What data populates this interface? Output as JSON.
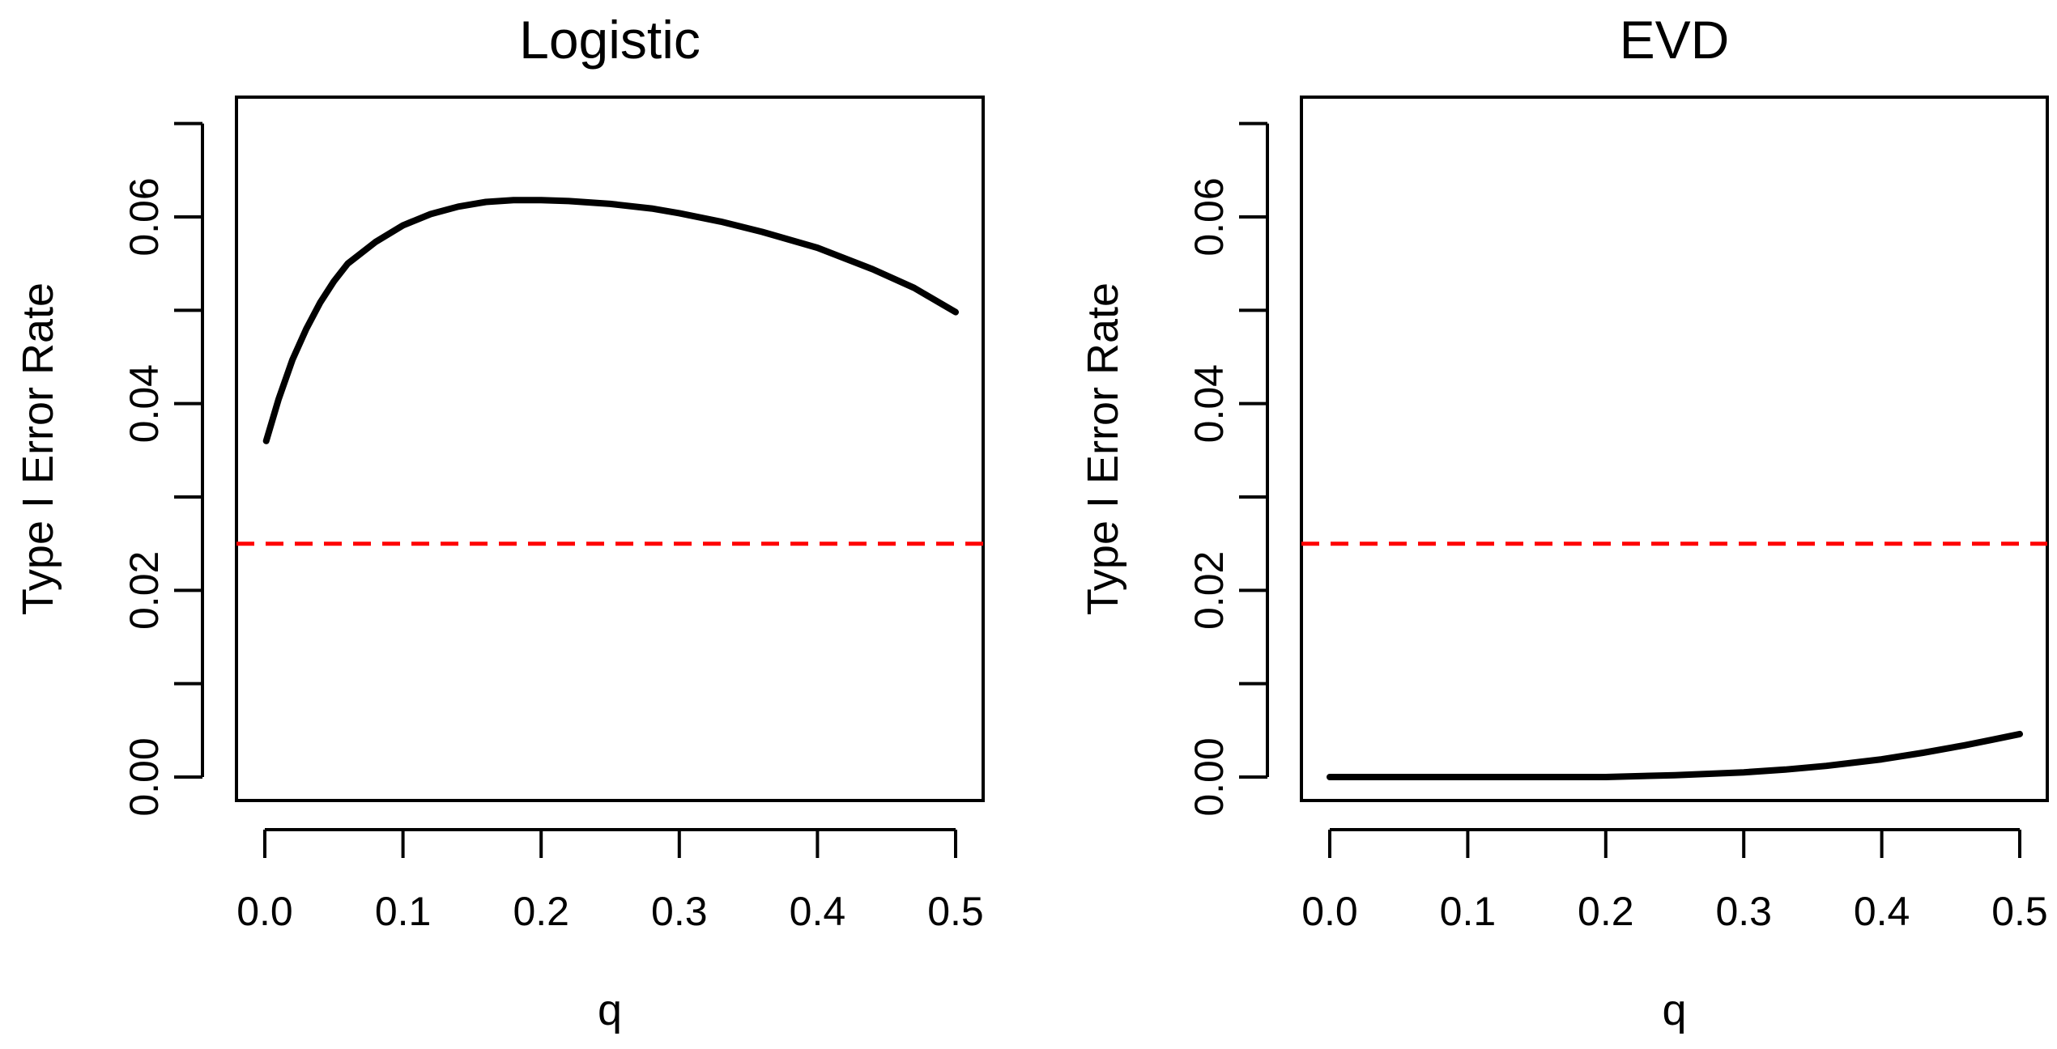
{
  "chart_data": [
    {
      "type": "line",
      "title": "Logistic",
      "xlabel": "q",
      "ylabel": "Type I Error Rate",
      "xlim": [
        0.0,
        0.5
      ],
      "ylim": [
        0.0,
        0.07
      ],
      "x_ticks": [
        "0.0",
        "0.1",
        "0.2",
        "0.3",
        "0.4",
        "0.5"
      ],
      "y_ticks": [
        "0.00",
        "0.02",
        "0.04",
        "0.06"
      ],
      "y_minor_ticks": [
        0.01,
        0.03,
        0.05,
        0.07
      ],
      "grid": false,
      "series": [
        {
          "color": "#000000",
          "style": "solid",
          "x": [
            0.001,
            0.01,
            0.02,
            0.03,
            0.04,
            0.05,
            0.06,
            0.08,
            0.1,
            0.12,
            0.14,
            0.16,
            0.18,
            0.2,
            0.22,
            0.25,
            0.28,
            0.3,
            0.33,
            0.36,
            0.4,
            0.44,
            0.47,
            0.5
          ],
          "y": [
            0.036,
            0.0405,
            0.0447,
            0.048,
            0.0508,
            0.0531,
            0.055,
            0.0573,
            0.0591,
            0.0603,
            0.0611,
            0.0616,
            0.0618,
            0.0618,
            0.0617,
            0.0614,
            0.0609,
            0.0604,
            0.0595,
            0.0584,
            0.0567,
            0.0544,
            0.0524,
            0.0498
          ]
        },
        {
          "color": "#ff0000",
          "style": "dashed",
          "x": [
            0.0,
            0.5
          ],
          "y": [
            0.025,
            0.025
          ]
        }
      ]
    },
    {
      "type": "line",
      "title": "EVD",
      "xlabel": "q",
      "ylabel": "Type I Error Rate",
      "xlim": [
        0.0,
        0.5
      ],
      "ylim": [
        0.0,
        0.07
      ],
      "x_ticks": [
        "0.0",
        "0.1",
        "0.2",
        "0.3",
        "0.4",
        "0.5"
      ],
      "y_ticks": [
        "0.00",
        "0.02",
        "0.04",
        "0.06"
      ],
      "y_minor_ticks": [
        0.01,
        0.03,
        0.05,
        0.07
      ],
      "grid": false,
      "series": [
        {
          "color": "#000000",
          "style": "solid",
          "x": [
            0.0,
            0.05,
            0.1,
            0.15,
            0.2,
            0.25,
            0.3,
            0.33,
            0.36,
            0.4,
            0.43,
            0.46,
            0.48,
            0.5
          ],
          "y": [
            0.0,
            0.0,
            0.0,
            0.0,
            0.0,
            0.0002,
            0.0005,
            0.0008,
            0.0012,
            0.0019,
            0.0026,
            0.0034,
            0.004,
            0.0046
          ]
        },
        {
          "color": "#ff0000",
          "style": "dashed",
          "x": [
            0.0,
            0.5
          ],
          "y": [
            0.025,
            0.025
          ]
        }
      ]
    }
  ]
}
